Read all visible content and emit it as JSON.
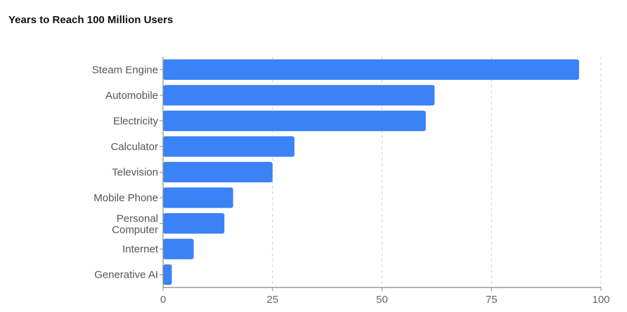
{
  "chart_data": {
    "type": "bar",
    "orientation": "horizontal",
    "title": "Years to Reach 100 Million Users",
    "categories": [
      "Steam Engine",
      "Automobile",
      "Electricity",
      "Calculator",
      "Television",
      "Mobile Phone",
      "Personal Computer",
      "Internet",
      "Generative AI"
    ],
    "values": [
      95,
      62,
      60,
      30,
      25,
      16,
      14,
      7,
      2
    ],
    "xlabel": "",
    "ylabel": "",
    "xlim": [
      0,
      100
    ],
    "xticks": [
      "0",
      "25",
      "50",
      "75",
      "100"
    ],
    "grid": true,
    "bar_color": "#3b82f6"
  }
}
